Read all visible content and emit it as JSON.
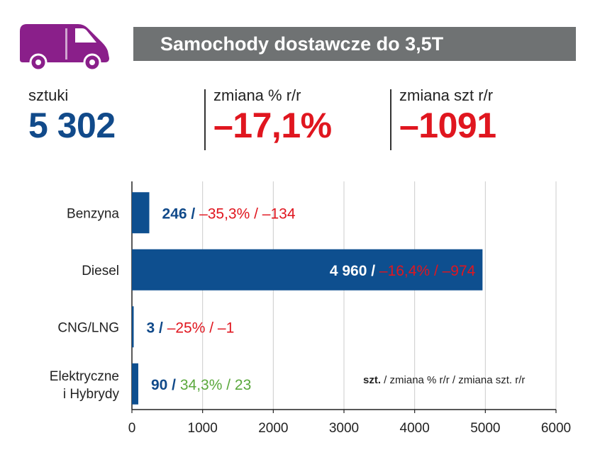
{
  "header": {
    "title": "Samochody dostawcze do 3,5T",
    "icon": "delivery-van-icon"
  },
  "kpis": [
    {
      "label": "sztuki",
      "value": "5 302"
    },
    {
      "label": "zmiana % r/r",
      "value": "–17,1%"
    },
    {
      "label": "zmiana szt r/r",
      "value": "–1091"
    }
  ],
  "legend_note": {
    "bold": "szt.",
    "rest": " / zmiana % r/r / zmiana szt. r/r"
  },
  "colors": {
    "bar": "#0e4f8f",
    "negative": "#e0161f",
    "positive": "#5aa83c",
    "value": "#114a8a",
    "grid": "#cccccc"
  },
  "chart_data": {
    "type": "bar",
    "orientation": "horizontal",
    "categories": [
      "Benzyna",
      "Diesel",
      "CNG/LNG",
      "Elektryczne\ni Hybrydy"
    ],
    "values": [
      246,
      4960,
      3,
      90
    ],
    "bar_labels": [
      {
        "units": "246 /",
        "pct": "–35,3% /",
        "delta": "–134",
        "sign": "negative"
      },
      {
        "units": "4 960 /",
        "pct": "–16,4% /",
        "delta": "–974",
        "sign": "negative"
      },
      {
        "units": "3 /",
        "pct": "–25% /",
        "delta": "–1",
        "sign": "negative"
      },
      {
        "units": "90 /",
        "pct": "34,3% /",
        "delta": "23",
        "sign": "positive"
      }
    ],
    "xlim": [
      0,
      6000
    ],
    "xticks": [
      0,
      1000,
      2000,
      3000,
      4000,
      5000,
      6000
    ],
    "grid": true
  }
}
